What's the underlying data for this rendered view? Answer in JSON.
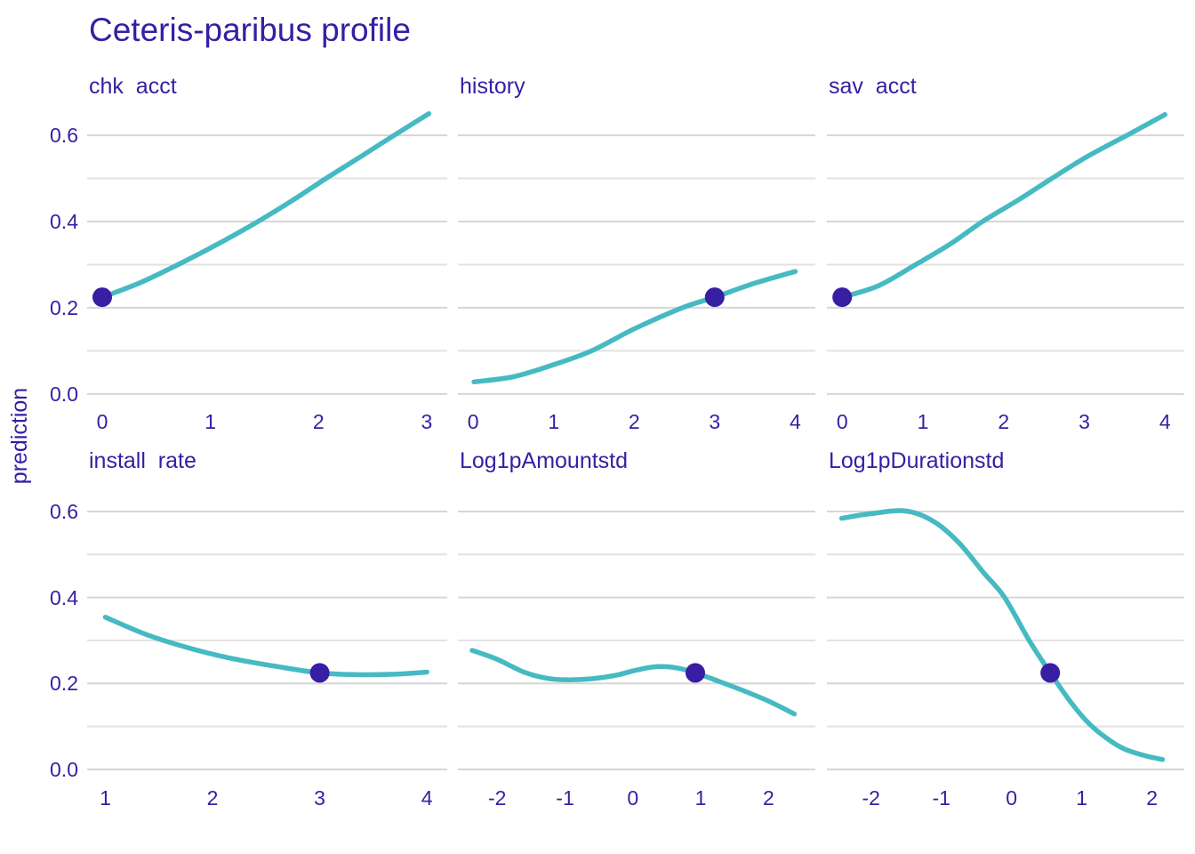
{
  "title": "Ceteris-paribus profile",
  "y_axis_label": "prediction",
  "colors": {
    "text": "#371ea3",
    "curve": "#46bac2",
    "dot": "#371ea3",
    "grid_major": "#d6d6d6",
    "grid_minor": "#e2e2e2",
    "background": "#ffffff"
  },
  "chart_data": {
    "type": "line",
    "title": "Ceteris-paribus profile",
    "ylabel": "prediction",
    "xlabel": "",
    "legend": "none",
    "grid": "horizontal-only",
    "ylim": [
      -0.025,
      0.662
    ],
    "y_ticks": [
      {
        "v": 0.0,
        "label": "0.0"
      },
      {
        "v": 0.2,
        "label": "0.2"
      },
      {
        "v": 0.4,
        "label": "0.4"
      },
      {
        "v": 0.6,
        "label": "0.6"
      }
    ],
    "y_minor_gridlines": [
      0.1,
      0.3,
      0.5
    ],
    "facets": [
      {
        "title": "chk  acct",
        "row": 0,
        "col": 0,
        "xlim": [
          -0.14,
          3.19
        ],
        "x_ticks": [
          0,
          1,
          2,
          3
        ],
        "curve": [
          [
            0,
            0.2245
          ],
          [
            0.35,
            0.258
          ],
          [
            0.7,
            0.3
          ],
          [
            1.07,
            0.348
          ],
          [
            1.44,
            0.4
          ],
          [
            1.76,
            0.449
          ],
          [
            2.07,
            0.5
          ],
          [
            2.4,
            0.552
          ],
          [
            2.7,
            0.6
          ],
          [
            3.02,
            0.65
          ]
        ],
        "dot": [
          0,
          0.2245
        ]
      },
      {
        "title": "history",
        "row": 0,
        "col": 1,
        "xlim": [
          -0.19,
          4.25
        ],
        "x_ticks": [
          0,
          1,
          2,
          3,
          4
        ],
        "curve": [
          [
            0.01,
            0.028
          ],
          [
            0.5,
            0.04
          ],
          [
            1.0,
            0.068
          ],
          [
            1.47,
            0.1
          ],
          [
            2.0,
            0.151
          ],
          [
            2.6,
            0.2
          ],
          [
            3.0,
            0.2245
          ],
          [
            3.5,
            0.257
          ],
          [
            4.0,
            0.284
          ]
        ],
        "dot": [
          3.0,
          0.2245
        ]
      },
      {
        "title": "sav  acct",
        "row": 0,
        "col": 2,
        "xlim": [
          -0.19,
          4.24
        ],
        "x_ticks": [
          0,
          1,
          2,
          3,
          4
        ],
        "curve": [
          [
            0,
            0.2245
          ],
          [
            0.45,
            0.251
          ],
          [
            0.91,
            0.3
          ],
          [
            1.35,
            0.349
          ],
          [
            1.74,
            0.4
          ],
          [
            2.2,
            0.452
          ],
          [
            2.6,
            0.5
          ],
          [
            3.05,
            0.552
          ],
          [
            3.53,
            0.6
          ],
          [
            4.0,
            0.648
          ]
        ],
        "dot": [
          0,
          0.2245
        ]
      },
      {
        "title": "install  rate",
        "row": 1,
        "col": 0,
        "xlim": [
          0.83,
          4.19
        ],
        "x_ticks": [
          1,
          2,
          3,
          4
        ],
        "curve": [
          [
            1,
            0.354
          ],
          [
            1.4,
            0.312
          ],
          [
            1.8,
            0.281
          ],
          [
            2.2,
            0.257
          ],
          [
            2.6,
            0.2395
          ],
          [
            3.0,
            0.2245
          ],
          [
            3.35,
            0.2205
          ],
          [
            3.7,
            0.2215
          ],
          [
            4.0,
            0.2265
          ]
        ],
        "dot": [
          3.0,
          0.2245
        ]
      },
      {
        "title": "Log1pAmountstd",
        "row": 1,
        "col": 1,
        "xlim": [
          -2.58,
          2.69
        ],
        "x_ticks": [
          -2,
          -1,
          0,
          1,
          2
        ],
        "curve": [
          [
            -2.37,
            0.277
          ],
          [
            -2.0,
            0.256
          ],
          [
            -1.6,
            0.226
          ],
          [
            -1.25,
            0.2115
          ],
          [
            -0.95,
            0.2085
          ],
          [
            -0.6,
            0.211
          ],
          [
            -0.25,
            0.219
          ],
          [
            0.05,
            0.231
          ],
          [
            0.35,
            0.239
          ],
          [
            0.65,
            0.236
          ],
          [
            0.92,
            0.2245
          ],
          [
            1.25,
            0.206
          ],
          [
            1.6,
            0.185
          ],
          [
            2.0,
            0.159
          ],
          [
            2.38,
            0.129
          ]
        ],
        "dot": [
          0.92,
          0.2245
        ]
      },
      {
        "title": "Log1pDurationstd",
        "row": 1,
        "col": 2,
        "xlim": [
          -2.63,
          2.46
        ],
        "x_ticks": [
          -2,
          -1,
          0,
          1,
          2
        ],
        "curve": [
          [
            -2.42,
            0.584
          ],
          [
            -2.0,
            0.595
          ],
          [
            -1.5,
            0.601
          ],
          [
            -1.1,
            0.576
          ],
          [
            -0.75,
            0.527
          ],
          [
            -0.4,
            0.458
          ],
          [
            -0.1,
            0.4
          ],
          [
            0.25,
            0.3
          ],
          [
            0.55,
            0.225
          ],
          [
            0.85,
            0.155
          ],
          [
            1.1,
            0.107
          ],
          [
            1.35,
            0.073
          ],
          [
            1.6,
            0.048
          ],
          [
            1.9,
            0.032
          ],
          [
            2.15,
            0.023
          ]
        ],
        "dot": [
          0.55,
          0.2245
        ]
      }
    ]
  }
}
